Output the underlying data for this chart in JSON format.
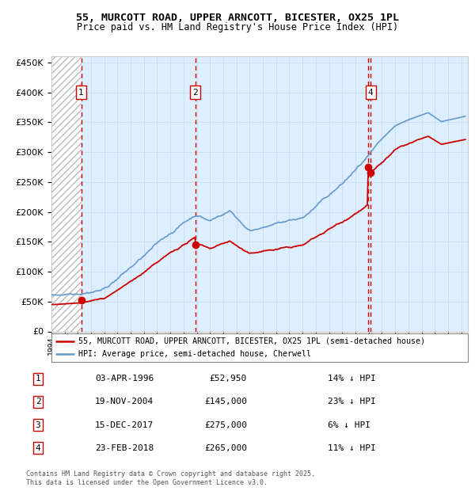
{
  "title_line1": "55, MURCOTT ROAD, UPPER ARNCOTT, BICESTER, OX25 1PL",
  "title_line2": "Price paid vs. HM Land Registry's House Price Index (HPI)",
  "legend_line1": "55, MURCOTT ROAD, UPPER ARNCOTT, BICESTER, OX25 1PL (semi-detached house)",
  "legend_line2": "HPI: Average price, semi-detached house, Cherwell",
  "footer_line1": "Contains HM Land Registry data © Crown copyright and database right 2025.",
  "footer_line2": "This data is licensed under the Open Government Licence v3.0.",
  "transactions": [
    {
      "num": 1,
      "date": "03-APR-1996",
      "price": 52950,
      "year": 1996.26,
      "hpi_pct": "14% ↓ HPI",
      "show_box": true
    },
    {
      "num": 2,
      "date": "19-NOV-2004",
      "price": 145000,
      "year": 2004.88,
      "hpi_pct": "23% ↓ HPI",
      "show_box": true
    },
    {
      "num": 3,
      "date": "15-DEC-2017",
      "price": 275000,
      "year": 2017.95,
      "hpi_pct": "6% ↓ HPI",
      "show_box": false
    },
    {
      "num": 4,
      "date": "23-FEB-2018",
      "price": 265000,
      "year": 2018.14,
      "hpi_pct": "11% ↓ HPI",
      "show_box": true
    }
  ],
  "ylim": [
    0,
    460000
  ],
  "yticks": [
    0,
    50000,
    100000,
    150000,
    200000,
    250000,
    300000,
    350000,
    400000,
    450000
  ],
  "xlim_start": 1994.0,
  "xlim_end": 2025.5,
  "hatch_end_year": 1996.26,
  "price_color": "#cc0000",
  "hpi_color": "#6699cc",
  "grid_color": "#ccddee",
  "background_color": "#ddeeff"
}
